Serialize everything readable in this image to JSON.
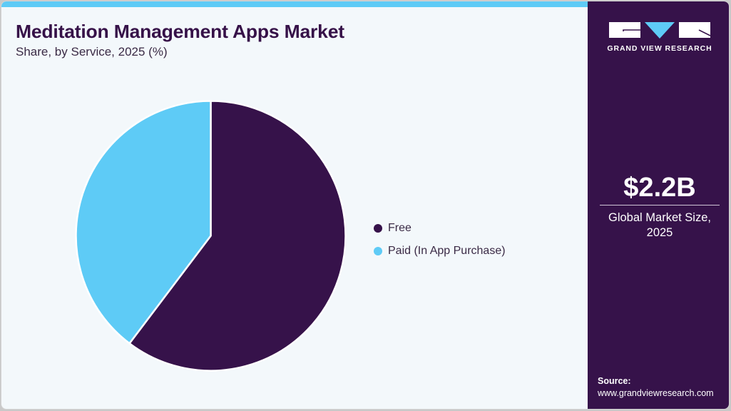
{
  "header": {
    "title": "Meditation Management Apps Market",
    "subtitle": "Share, by Service, 2025 (%)"
  },
  "colors": {
    "accent_bar": "#5ecbf6",
    "free": "#36124a",
    "paid": "#5ecbf6",
    "sidebar": "#36124a",
    "background": "#f3f8fb"
  },
  "chart_data": {
    "type": "pie",
    "title": "Meditation Management Apps Market",
    "subtitle": "Share, by Service, 2025 (%)",
    "categories": [
      "Free",
      "Paid (In App Purchase)"
    ],
    "values": [
      60.3,
      39.7
    ],
    "colors": [
      "#36124a",
      "#5ecbf6"
    ],
    "start_angle": "12 o'clock, clockwise",
    "data_labels": false,
    "legend_position": "right"
  },
  "legend": {
    "items": [
      {
        "label": "Free",
        "color": "#36124a"
      },
      {
        "label": "Paid (In App Purchase)",
        "color": "#5ecbf6"
      }
    ]
  },
  "sidebar": {
    "logo_text": "GRAND VIEW RESEARCH",
    "market_value": "$2.2B",
    "market_label_line1": "Global Market Size,",
    "market_label_line2": "2025",
    "source_label": "Source:",
    "source_url": "www.grandviewresearch.com"
  }
}
